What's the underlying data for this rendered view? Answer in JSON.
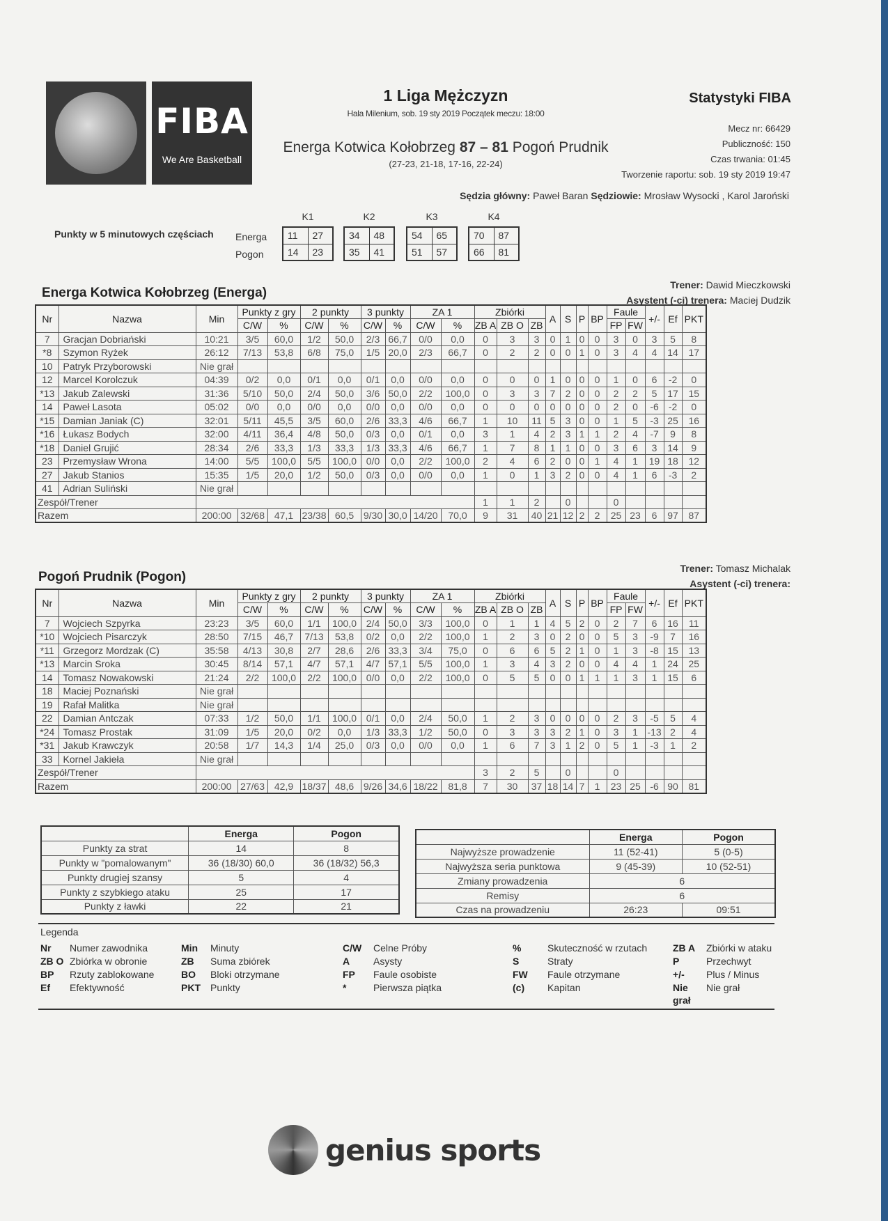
{
  "header": {
    "logo_text": "FIBA",
    "logo_tagline": "We Are Basketball",
    "league": "1 Liga Mężczyzn",
    "venue": "Hala Milenium, sob. 19 sty 2019 Początek meczu: 18:00",
    "home": "Energa Kotwica Kołobrzeg",
    "home_score": "87",
    "dash": "–",
    "away_score": "81",
    "away": "Pogoń Prudnik",
    "quarters": "(27-23, 21-18, 17-16, 22-24)",
    "stats_title": "Statystyki FIBA",
    "match_no": "Mecz nr: 66429",
    "attendance": "Publiczność: 150",
    "duration": "Czas trwania: 01:45",
    "report": "Tworzenie raportu: sob. 19 sty 2019 19:47",
    "head_ref_label": "Sędzia główny:",
    "head_ref": "Paweł Baran",
    "refs_label": "Sędziowie:",
    "refs": "Mrosław Wysocki , Karol Jaroński"
  },
  "periods": {
    "label": "Punkty w 5 minutowych częściach",
    "teams": [
      "Energa",
      "Pogon"
    ],
    "quarters": [
      {
        "k": "K1",
        "energa": [
          "11",
          "27"
        ],
        "pogon": [
          "14",
          "23"
        ]
      },
      {
        "k": "K2",
        "energa": [
          "34",
          "48"
        ],
        "pogon": [
          "35",
          "41"
        ]
      },
      {
        "k": "K3",
        "energa": [
          "54",
          "65"
        ],
        "pogon": [
          "51",
          "57"
        ]
      },
      {
        "k": "K4",
        "energa": [
          "70",
          "87"
        ],
        "pogon": [
          "66",
          "81"
        ]
      }
    ]
  },
  "columns": {
    "nr": "Nr",
    "name": "Nazwa",
    "min": "Min",
    "fg": "Punkty z gry",
    "p2": "2 punkty",
    "p3": "3 punkty",
    "ft": "ZA 1",
    "reb": "Zbiórki",
    "a": "A",
    "s": "S",
    "p": "P",
    "bp": "BP",
    "fouls": "Faule",
    "pm": "+/-",
    "ef": "Ef",
    "pkt": "PKT",
    "cw": "C/W",
    "pct": "%",
    "zba": "ZB A",
    "zbo": "ZB O",
    "zb": "ZB",
    "fp": "FP",
    "fw": "FW"
  },
  "energa": {
    "title": "Energa Kotwica Kołobrzeg (Energa)",
    "coach_label": "Trener:",
    "coach": "Dawid Mieczkowski",
    "assistant_label": "Asystent (-ci) trenera:",
    "assistant": "Maciej Dudzik",
    "players": [
      [
        "7",
        "Gracjan Dobriański",
        "10:21",
        "3/5",
        "60,0",
        "1/2",
        "50,0",
        "2/3",
        "66,7",
        "0/0",
        "0,0",
        "0",
        "3",
        "3",
        "0",
        "1",
        "0",
        "0",
        "3",
        "0",
        "3",
        "5",
        "8"
      ],
      [
        "*8",
        "Szymon Ryżek",
        "26:12",
        "7/13",
        "53,8",
        "6/8",
        "75,0",
        "1/5",
        "20,0",
        "2/3",
        "66,7",
        "0",
        "2",
        "2",
        "0",
        "0",
        "1",
        "0",
        "3",
        "4",
        "4",
        "14",
        "17"
      ],
      [
        "10",
        "Patryk Przyborowski",
        "Nie grał"
      ],
      [
        "12",
        "Marcel Korolczuk",
        "04:39",
        "0/2",
        "0,0",
        "0/1",
        "0,0",
        "0/1",
        "0,0",
        "0/0",
        "0,0",
        "0",
        "0",
        "0",
        "1",
        "0",
        "0",
        "0",
        "1",
        "0",
        "6",
        "-2",
        "0"
      ],
      [
        "*13",
        "Jakub Zalewski",
        "31:36",
        "5/10",
        "50,0",
        "2/4",
        "50,0",
        "3/6",
        "50,0",
        "2/2",
        "100,0",
        "0",
        "3",
        "3",
        "7",
        "2",
        "0",
        "0",
        "2",
        "2",
        "5",
        "17",
        "15"
      ],
      [
        "14",
        "Paweł Lasota",
        "05:02",
        "0/0",
        "0,0",
        "0/0",
        "0,0",
        "0/0",
        "0,0",
        "0/0",
        "0,0",
        "0",
        "0",
        "0",
        "0",
        "0",
        "0",
        "0",
        "2",
        "0",
        "-6",
        "-2",
        "0"
      ],
      [
        "*15",
        "Damian Janiak (C)",
        "32:01",
        "5/11",
        "45,5",
        "3/5",
        "60,0",
        "2/6",
        "33,3",
        "4/6",
        "66,7",
        "1",
        "10",
        "11",
        "5",
        "3",
        "0",
        "0",
        "1",
        "5",
        "-3",
        "25",
        "16"
      ],
      [
        "*16",
        "Łukasz Bodych",
        "32:00",
        "4/11",
        "36,4",
        "4/8",
        "50,0",
        "0/3",
        "0,0",
        "0/1",
        "0,0",
        "3",
        "1",
        "4",
        "2",
        "3",
        "1",
        "1",
        "2",
        "4",
        "-7",
        "9",
        "8"
      ],
      [
        "*18",
        "Daniel Grujić",
        "28:34",
        "2/6",
        "33,3",
        "1/3",
        "33,3",
        "1/3",
        "33,3",
        "4/6",
        "66,7",
        "1",
        "7",
        "8",
        "1",
        "1",
        "0",
        "0",
        "3",
        "6",
        "3",
        "14",
        "9"
      ],
      [
        "23",
        "Przemysław Wrona",
        "14:00",
        "5/5",
        "100,0",
        "5/5",
        "100,0",
        "0/0",
        "0,0",
        "2/2",
        "100,0",
        "2",
        "4",
        "6",
        "2",
        "0",
        "0",
        "1",
        "4",
        "1",
        "19",
        "18",
        "12"
      ],
      [
        "27",
        "Jakub Stanios",
        "15:35",
        "1/5",
        "20,0",
        "1/2",
        "50,0",
        "0/3",
        "0,0",
        "0/0",
        "0,0",
        "1",
        "0",
        "1",
        "3",
        "2",
        "0",
        "0",
        "4",
        "1",
        "6",
        "-3",
        "2"
      ],
      [
        "41",
        "Adrian Suliński",
        "Nie grał"
      ]
    ],
    "team_label": "Zespół/Trener",
    "team": {
      "zba": "1",
      "zbo": "1",
      "zb": "2",
      "s": "0",
      "fp": "0"
    },
    "total_label": "Razem",
    "totals": [
      "200:00",
      "32/68",
      "47,1",
      "23/38",
      "60,5",
      "9/30",
      "30,0",
      "14/20",
      "70,0",
      "9",
      "31",
      "40",
      "21",
      "12",
      "2",
      "2",
      "25",
      "23",
      "6",
      "97",
      "87"
    ]
  },
  "pogon": {
    "title": "Pogoń Prudnik (Pogon)",
    "coach_label": "Trener:",
    "coach": "Tomasz Michalak",
    "assistant_label": "Asystent (-ci) trenera:",
    "players": [
      [
        "7",
        "Wojciech Szpyrka",
        "23:23",
        "3/5",
        "60,0",
        "1/1",
        "100,0",
        "2/4",
        "50,0",
        "3/3",
        "100,0",
        "0",
        "1",
        "1",
        "4",
        "5",
        "2",
        "0",
        "2",
        "7",
        "6",
        "16",
        "11"
      ],
      [
        "*10",
        "Wojciech Pisarczyk",
        "28:50",
        "7/15",
        "46,7",
        "7/13",
        "53,8",
        "0/2",
        "0,0",
        "2/2",
        "100,0",
        "1",
        "2",
        "3",
        "0",
        "2",
        "0",
        "0",
        "5",
        "3",
        "-9",
        "7",
        "16"
      ],
      [
        "*11",
        "Grzegorz Mordzak (C)",
        "35:58",
        "4/13",
        "30,8",
        "2/7",
        "28,6",
        "2/6",
        "33,3",
        "3/4",
        "75,0",
        "0",
        "6",
        "6",
        "5",
        "2",
        "1",
        "0",
        "1",
        "3",
        "-8",
        "15",
        "13"
      ],
      [
        "*13",
        "Marcin Sroka",
        "30:45",
        "8/14",
        "57,1",
        "4/7",
        "57,1",
        "4/7",
        "57,1",
        "5/5",
        "100,0",
        "1",
        "3",
        "4",
        "3",
        "2",
        "0",
        "0",
        "4",
        "4",
        "1",
        "24",
        "25"
      ],
      [
        "14",
        "Tomasz Nowakowski",
        "21:24",
        "2/2",
        "100,0",
        "2/2",
        "100,0",
        "0/0",
        "0,0",
        "2/2",
        "100,0",
        "0",
        "5",
        "5",
        "0",
        "0",
        "1",
        "1",
        "1",
        "3",
        "1",
        "15",
        "6"
      ],
      [
        "18",
        "Maciej Poznański",
        "Nie grał"
      ],
      [
        "19",
        "Rafał Malitka",
        "Nie grał"
      ],
      [
        "22",
        "Damian Antczak",
        "07:33",
        "1/2",
        "50,0",
        "1/1",
        "100,0",
        "0/1",
        "0,0",
        "2/4",
        "50,0",
        "1",
        "2",
        "3",
        "0",
        "0",
        "0",
        "0",
        "2",
        "3",
        "-5",
        "5",
        "4"
      ],
      [
        "*24",
        "Tomasz Prostak",
        "31:09",
        "1/5",
        "20,0",
        "0/2",
        "0,0",
        "1/3",
        "33,3",
        "1/2",
        "50,0",
        "0",
        "3",
        "3",
        "3",
        "2",
        "1",
        "0",
        "3",
        "1",
        "-13",
        "2",
        "4"
      ],
      [
        "*31",
        "Jakub Krawczyk",
        "20:58",
        "1/7",
        "14,3",
        "1/4",
        "25,0",
        "0/3",
        "0,0",
        "0/0",
        "0,0",
        "1",
        "6",
        "7",
        "3",
        "1",
        "2",
        "0",
        "5",
        "1",
        "-3",
        "1",
        "2"
      ],
      [
        "33",
        "Kornel Jakieła",
        "Nie grał"
      ]
    ],
    "team_label": "Zespół/Trener",
    "team": {
      "zba": "3",
      "zbo": "2",
      "zb": "5",
      "s": "0",
      "fp": "0"
    },
    "total_label": "Razem",
    "totals": [
      "200:00",
      "27/63",
      "42,9",
      "18/37",
      "48,6",
      "9/26",
      "34,6",
      "18/22",
      "81,8",
      "7",
      "30",
      "37",
      "18",
      "14",
      "7",
      "1",
      "23",
      "25",
      "-6",
      "90",
      "81"
    ]
  },
  "summary_left": {
    "headers": [
      "",
      "Energa",
      "Pogon"
    ],
    "rows": [
      [
        "Punkty za strat",
        "14",
        "8"
      ],
      [
        "Punkty w \"pomalowanym\"",
        "36 (18/30) 60,0",
        "36 (18/32) 56,3"
      ],
      [
        "Punkty drugiej szansy",
        "5",
        "4"
      ],
      [
        "Punkty z szybkiego ataku",
        "25",
        "17"
      ],
      [
        "Punkty z ławki",
        "22",
        "21"
      ]
    ]
  },
  "summary_right": {
    "headers": [
      "",
      "Energa",
      "Pogon"
    ],
    "rows": [
      [
        "Najwyższe prowadzenie",
        "11 (52-41)",
        "5 (0-5)"
      ],
      [
        "Najwyższa seria punktowa",
        "9 (45-39)",
        "10 (52-51)"
      ]
    ],
    "shared": [
      [
        "Zmiany prowadzenia",
        "6"
      ],
      [
        "Remisy",
        "6"
      ]
    ],
    "time_label": "Czas na prowadzeniu",
    "time": [
      "26:23",
      "09:51"
    ]
  },
  "legend": {
    "title": "Legenda",
    "items": [
      [
        "Nr",
        "Numer zawodnika"
      ],
      [
        "Min",
        "Minuty"
      ],
      [
        "C/W",
        "Celne Próby"
      ],
      [
        "%",
        "Skuteczność w rzutach"
      ],
      [
        "ZB A",
        "Zbiórki w ataku"
      ],
      [
        "ZB O",
        "Zbiórka w obronie"
      ],
      [
        "ZB",
        "Suma zbiórek"
      ],
      [
        "A",
        "Asysty"
      ],
      [
        "S",
        "Straty"
      ],
      [
        "P",
        "Przechwyt"
      ],
      [
        "BP",
        "Rzuty zablokowane"
      ],
      [
        "BO",
        "Bloki otrzymane"
      ],
      [
        "FP",
        "Faule osobiste"
      ],
      [
        "FW",
        "Faule otrzymane"
      ],
      [
        "+/-",
        "Plus / Minus"
      ],
      [
        "Ef",
        "Efektywność"
      ],
      [
        "PKT",
        "Punkty"
      ],
      [
        "*",
        "Pierwsza piątka"
      ],
      [
        "(c)",
        "Kapitan"
      ],
      [
        "Nie grał",
        "Nie grał"
      ]
    ]
  },
  "footer": {
    "brand": "genius sports"
  }
}
